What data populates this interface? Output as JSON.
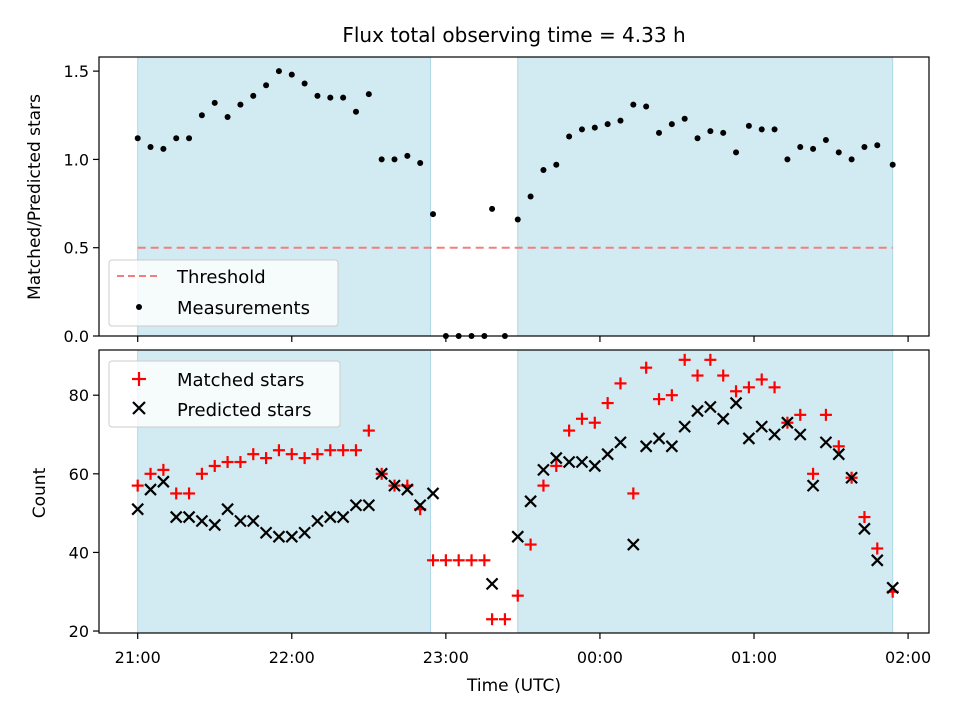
{
  "title": "Flux total observing time = 4.33 h",
  "chart_data": [
    {
      "type": "scatter",
      "ylabel": "Matched/Predicted stars",
      "ylim": [
        0,
        1.58
      ],
      "yticks": [
        0.0,
        0.5,
        1.0,
        1.5
      ],
      "ytick_labels": [
        "0.0",
        "0.5",
        "1.0",
        "1.5"
      ],
      "legend": {
        "placement": "lower-left",
        "entries": [
          "Threshold",
          "Measurements"
        ]
      },
      "threshold": {
        "name": "Threshold",
        "value": 0.5,
        "x_range": [
          "21:00",
          "01:54"
        ],
        "color": "#f08080",
        "style": "dashed"
      },
      "shaded_intervals": [
        [
          "21:00",
          "22:54"
        ],
        [
          "23:28",
          "01:54"
        ]
      ],
      "series": [
        {
          "name": "Measurements",
          "marker": "dot",
          "color": "#000000",
          "points": [
            [
              "21:00",
              1.12
            ],
            [
              "21:05",
              1.07
            ],
            [
              "21:10",
              1.06
            ],
            [
              "21:15",
              1.12
            ],
            [
              "21:20",
              1.12
            ],
            [
              "21:25",
              1.25
            ],
            [
              "21:30",
              1.32
            ],
            [
              "21:35",
              1.24
            ],
            [
              "21:40",
              1.31
            ],
            [
              "21:45",
              1.36
            ],
            [
              "21:50",
              1.42
            ],
            [
              "21:55",
              1.5
            ],
            [
              "22:00",
              1.48
            ],
            [
              "22:05",
              1.43
            ],
            [
              "22:10",
              1.36
            ],
            [
              "22:15",
              1.35
            ],
            [
              "22:20",
              1.35
            ],
            [
              "22:25",
              1.27
            ],
            [
              "22:30",
              1.37
            ],
            [
              "22:35",
              1.0
            ],
            [
              "22:40",
              1.0
            ],
            [
              "22:45",
              1.02
            ],
            [
              "22:50",
              0.98
            ],
            [
              "22:55",
              0.69
            ],
            [
              "23:00",
              0.0
            ],
            [
              "23:05",
              0.0
            ],
            [
              "23:10",
              0.0
            ],
            [
              "23:15",
              0.0
            ],
            [
              "23:18",
              0.72
            ],
            [
              "23:23",
              0.0
            ],
            [
              "23:28",
              0.66
            ],
            [
              "23:33",
              0.79
            ],
            [
              "23:38",
              0.94
            ],
            [
              "23:43",
              0.97
            ],
            [
              "23:48",
              1.13
            ],
            [
              "23:53",
              1.17
            ],
            [
              "23:58",
              1.18
            ],
            [
              "00:03",
              1.2
            ],
            [
              "00:08",
              1.22
            ],
            [
              "00:13",
              1.31
            ],
            [
              "00:18",
              1.3
            ],
            [
              "00:23",
              1.15
            ],
            [
              "00:28",
              1.2
            ],
            [
              "00:33",
              1.23
            ],
            [
              "00:38",
              1.12
            ],
            [
              "00:43",
              1.16
            ],
            [
              "00:48",
              1.15
            ],
            [
              "00:53",
              1.04
            ],
            [
              "00:58",
              1.19
            ],
            [
              "01:03",
              1.17
            ],
            [
              "01:08",
              1.17
            ],
            [
              "01:13",
              1.0
            ],
            [
              "01:18",
              1.07
            ],
            [
              "01:23",
              1.06
            ],
            [
              "01:28",
              1.11
            ],
            [
              "01:33",
              1.04
            ],
            [
              "01:38",
              1.0
            ],
            [
              "01:43",
              1.07
            ],
            [
              "01:48",
              1.08
            ],
            [
              "01:54",
              0.97
            ]
          ]
        }
      ]
    },
    {
      "type": "scatter",
      "xlabel": "Time (UTC)",
      "ylabel": "Count",
      "ylim": [
        19.5,
        91.5
      ],
      "yticks": [
        20,
        40,
        60,
        80
      ],
      "ytick_labels": [
        "20",
        "40",
        "60",
        "80"
      ],
      "xticks": [
        "21:00",
        "22:00",
        "23:00",
        "00:00",
        "01:00",
        "02:00"
      ],
      "legend": {
        "placement": "upper-left",
        "entries": [
          "Matched stars",
          "Predicted stars"
        ]
      },
      "shaded_intervals": [
        [
          "21:00",
          "22:54"
        ],
        [
          "23:28",
          "01:54"
        ]
      ],
      "series": [
        {
          "name": "Matched stars",
          "marker": "plus",
          "color": "#ff0000",
          "points": [
            [
              "21:00",
              57
            ],
            [
              "21:05",
              60
            ],
            [
              "21:10",
              61
            ],
            [
              "21:15",
              55
            ],
            [
              "21:20",
              55
            ],
            [
              "21:25",
              60
            ],
            [
              "21:30",
              62
            ],
            [
              "21:35",
              63
            ],
            [
              "21:40",
              63
            ],
            [
              "21:45",
              65
            ],
            [
              "21:50",
              64
            ],
            [
              "21:55",
              66
            ],
            [
              "22:00",
              65
            ],
            [
              "22:05",
              64
            ],
            [
              "22:10",
              65
            ],
            [
              "22:15",
              66
            ],
            [
              "22:20",
              66
            ],
            [
              "22:25",
              66
            ],
            [
              "22:30",
              71
            ],
            [
              "22:35",
              60
            ],
            [
              "22:40",
              57
            ],
            [
              "22:45",
              57
            ],
            [
              "22:50",
              51
            ],
            [
              "22:55",
              38
            ],
            [
              "23:00",
              38
            ],
            [
              "23:05",
              38
            ],
            [
              "23:10",
              38
            ],
            [
              "23:15",
              38
            ],
            [
              "23:18",
              23
            ],
            [
              "23:23",
              23
            ],
            [
              "23:28",
              29
            ],
            [
              "23:33",
              42
            ],
            [
              "23:38",
              57
            ],
            [
              "23:43",
              62
            ],
            [
              "23:48",
              71
            ],
            [
              "23:53",
              74
            ],
            [
              "23:58",
              73
            ],
            [
              "00:03",
              78
            ],
            [
              "00:08",
              83
            ],
            [
              "00:13",
              55
            ],
            [
              "00:18",
              87
            ],
            [
              "00:23",
              79
            ],
            [
              "00:28",
              80
            ],
            [
              "00:33",
              89
            ],
            [
              "00:38",
              85
            ],
            [
              "00:43",
              89
            ],
            [
              "00:48",
              85
            ],
            [
              "00:53",
              81
            ],
            [
              "00:58",
              82
            ],
            [
              "01:03",
              84
            ],
            [
              "01:08",
              82
            ],
            [
              "01:13",
              73
            ],
            [
              "01:18",
              75
            ],
            [
              "01:23",
              60
            ],
            [
              "01:28",
              75
            ],
            [
              "01:33",
              67
            ],
            [
              "01:38",
              59
            ],
            [
              "01:43",
              49
            ],
            [
              "01:48",
              41
            ],
            [
              "01:54",
              30
            ]
          ]
        },
        {
          "name": "Predicted stars",
          "marker": "x",
          "color": "#000000",
          "points": [
            [
              "21:00",
              51
            ],
            [
              "21:05",
              56
            ],
            [
              "21:10",
              58
            ],
            [
              "21:15",
              49
            ],
            [
              "21:20",
              49
            ],
            [
              "21:25",
              48
            ],
            [
              "21:30",
              47
            ],
            [
              "21:35",
              51
            ],
            [
              "21:40",
              48
            ],
            [
              "21:45",
              48
            ],
            [
              "21:50",
              45
            ],
            [
              "21:55",
              44
            ],
            [
              "22:00",
              44
            ],
            [
              "22:05",
              45
            ],
            [
              "22:10",
              48
            ],
            [
              "22:15",
              49
            ],
            [
              "22:20",
              49
            ],
            [
              "22:25",
              52
            ],
            [
              "22:30",
              52
            ],
            [
              "22:35",
              60
            ],
            [
              "22:40",
              57
            ],
            [
              "22:45",
              56
            ],
            [
              "22:50",
              52
            ],
            [
              "22:55",
              55
            ],
            [
              "23:18",
              32
            ],
            [
              "23:28",
              44
            ],
            [
              "23:33",
              53
            ],
            [
              "23:38",
              61
            ],
            [
              "23:43",
              64
            ],
            [
              "23:48",
              63
            ],
            [
              "23:53",
              63
            ],
            [
              "23:58",
              62
            ],
            [
              "00:03",
              65
            ],
            [
              "00:08",
              68
            ],
            [
              "00:13",
              42
            ],
            [
              "00:18",
              67
            ],
            [
              "00:23",
              69
            ],
            [
              "00:28",
              67
            ],
            [
              "00:33",
              72
            ],
            [
              "00:38",
              76
            ],
            [
              "00:43",
              77
            ],
            [
              "00:48",
              74
            ],
            [
              "00:53",
              78
            ],
            [
              "00:58",
              69
            ],
            [
              "01:03",
              72
            ],
            [
              "01:08",
              70
            ],
            [
              "01:13",
              73
            ],
            [
              "01:18",
              70
            ],
            [
              "01:23",
              57
            ],
            [
              "01:28",
              68
            ],
            [
              "01:33",
              65
            ],
            [
              "01:38",
              59
            ],
            [
              "01:43",
              46
            ],
            [
              "01:48",
              38
            ],
            [
              "01:54",
              31
            ]
          ]
        }
      ]
    }
  ],
  "colors": {
    "shade": "#add8e6",
    "matched": "#ff0000",
    "predicted": "#000000",
    "threshold": "#f08080",
    "measurements": "#000000"
  }
}
